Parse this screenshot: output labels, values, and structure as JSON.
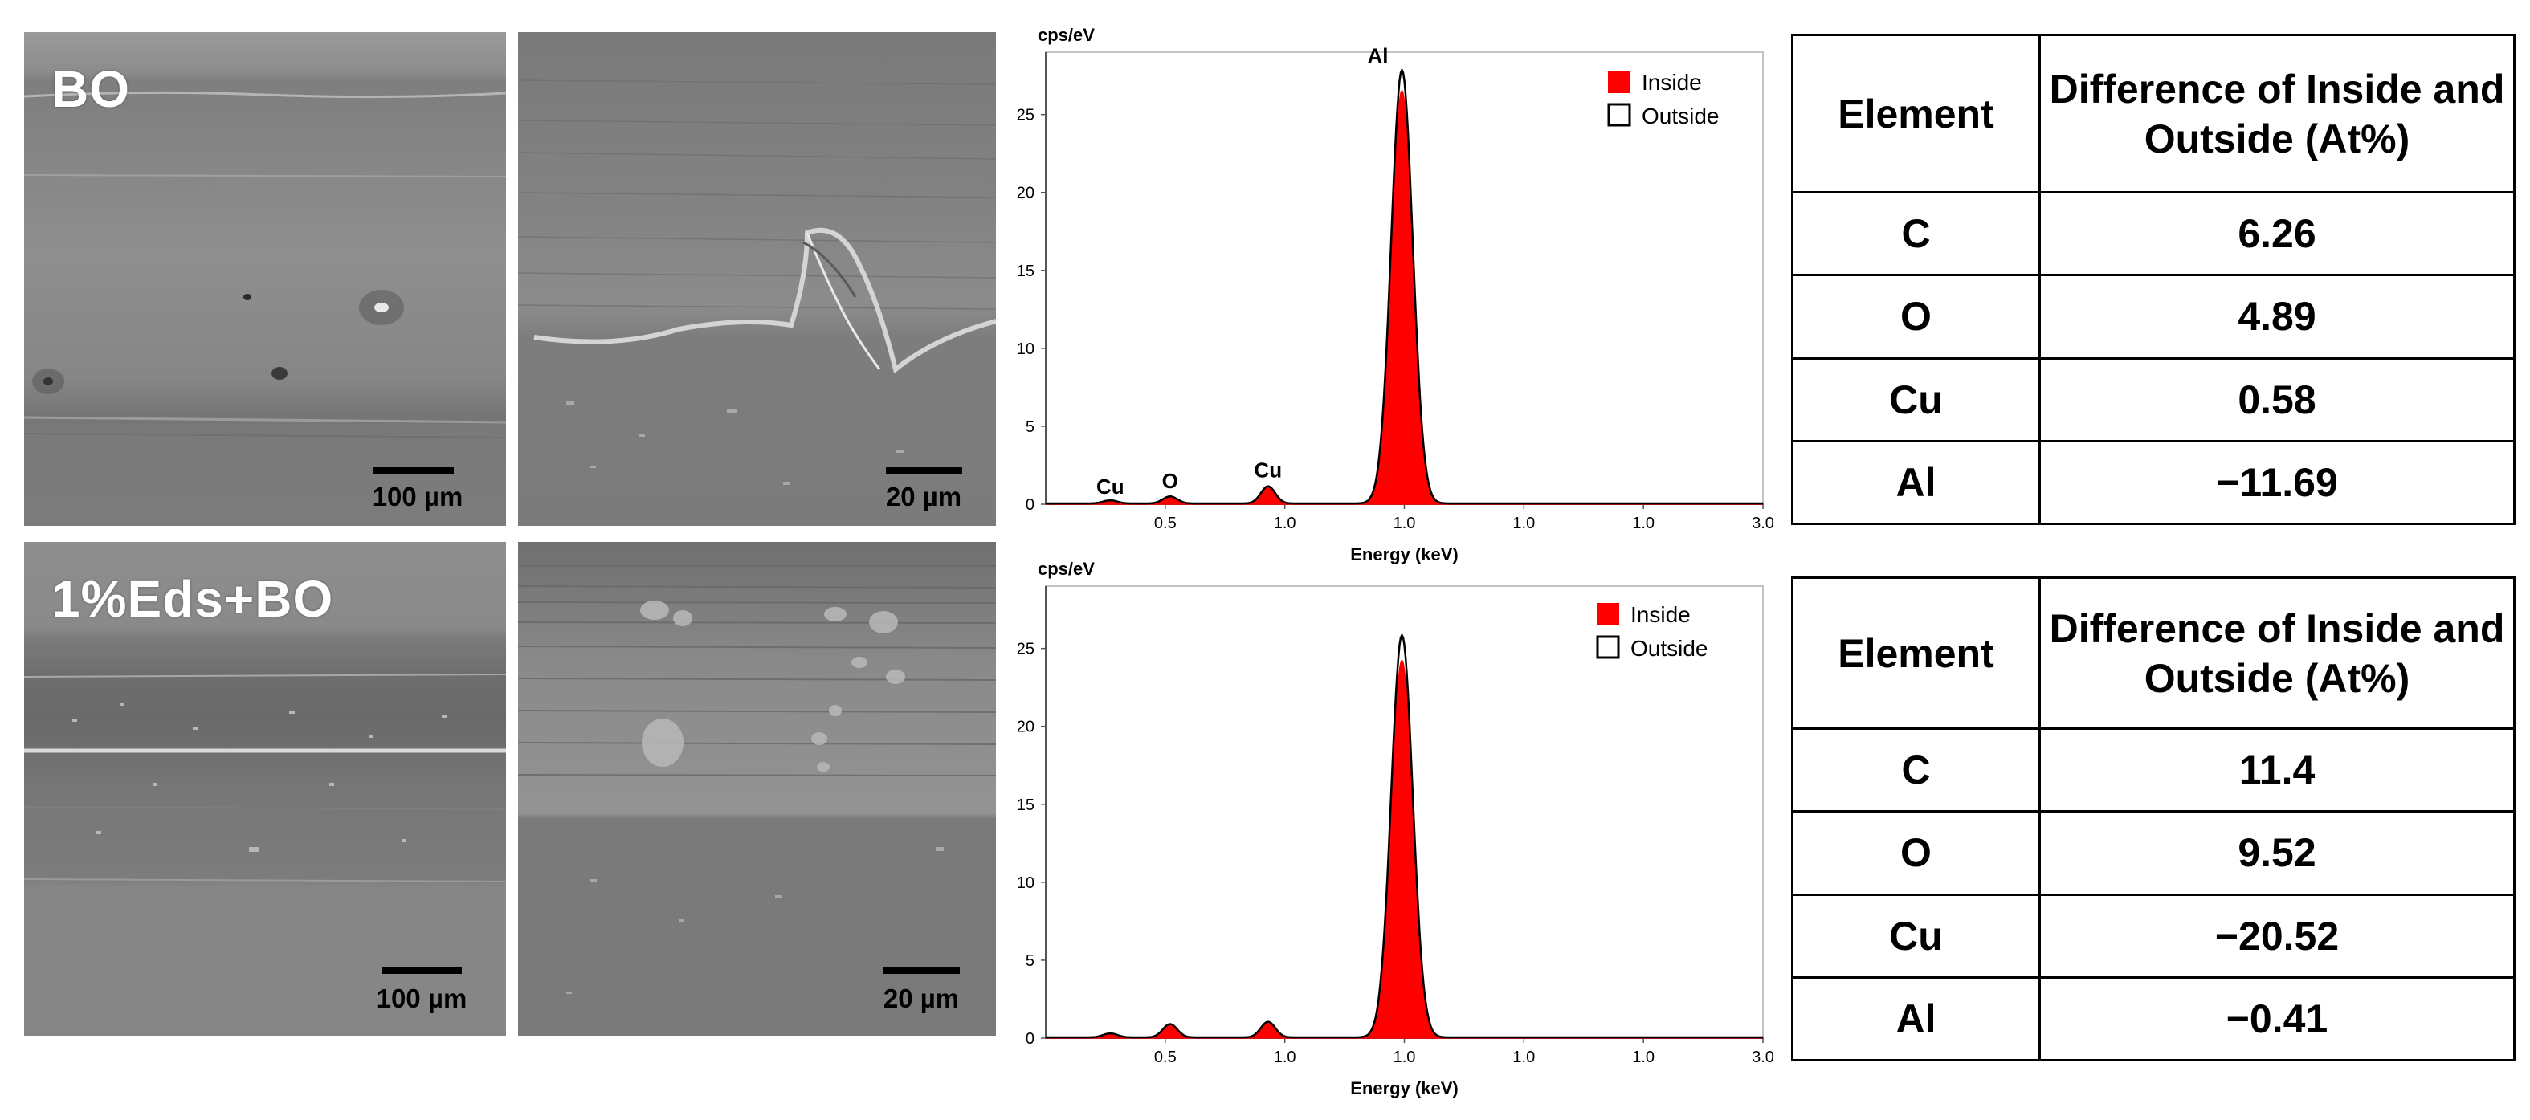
{
  "sem_rows": [
    {
      "label": "BO",
      "low_mag_scale": "100 µm",
      "high_mag_scale": "20 µm"
    },
    {
      "label": "1%Eds+BO",
      "low_mag_scale": "100 µm",
      "high_mag_scale": "20 µm"
    }
  ],
  "chart_data": [
    {
      "type": "area",
      "ylabel": "cps/eV",
      "xlabel": "Energy (keV)",
      "x_tick_labels": [
        "0.5",
        "1.0",
        "1.0",
        "1.0",
        "1.0",
        "3.0"
      ],
      "y_ticks": [
        0,
        5,
        10,
        15,
        20,
        25
      ],
      "ylim": [
        0,
        29
      ],
      "legend": [
        "Inside",
        "Outside"
      ],
      "legend_position": "top-right",
      "peak_labels": [
        "Cu",
        "O",
        "Cu",
        "Al"
      ],
      "series": [
        {
          "name": "Inside",
          "color": "#ff0000",
          "peaks": [
            {
              "x": 0.27,
              "y": 0.15
            },
            {
              "x": 0.52,
              "y": 0.4
            },
            {
              "x": 0.93,
              "y": 1.0
            },
            {
              "x": 1.49,
              "y": 26.5
            }
          ]
        },
        {
          "name": "Outside",
          "color": "#000000",
          "peaks": [
            {
              "x": 0.27,
              "y": 0.2
            },
            {
              "x": 0.52,
              "y": 0.45
            },
            {
              "x": 0.93,
              "y": 1.1
            },
            {
              "x": 1.49,
              "y": 27.8
            }
          ]
        }
      ]
    },
    {
      "type": "area",
      "ylabel": "cps/eV",
      "xlabel": "Energy (keV)",
      "x_tick_labels": [
        "0.5",
        "1.0",
        "1.0",
        "1.0",
        "1.0",
        "3.0"
      ],
      "y_ticks": [
        0,
        5,
        10,
        15,
        20,
        25
      ],
      "ylim": [
        0,
        29
      ],
      "legend": [
        "Inside",
        "Outside"
      ],
      "legend_position": "top-right",
      "peak_labels": [],
      "series": [
        {
          "name": "Inside",
          "color": "#ff0000",
          "peaks": [
            {
              "x": 0.27,
              "y": 0.2
            },
            {
              "x": 0.52,
              "y": 0.8
            },
            {
              "x": 0.93,
              "y": 0.9
            },
            {
              "x": 1.49,
              "y": 24.2
            }
          ]
        },
        {
          "name": "Outside",
          "color": "#000000",
          "peaks": [
            {
              "x": 0.27,
              "y": 0.25
            },
            {
              "x": 0.52,
              "y": 0.85
            },
            {
              "x": 0.93,
              "y": 1.0
            },
            {
              "x": 1.49,
              "y": 25.8
            }
          ]
        }
      ]
    }
  ],
  "tables": [
    {
      "header": [
        "Element",
        "Difference of Inside and Outside (At%)"
      ],
      "rows": [
        [
          "C",
          "6.26"
        ],
        [
          "O",
          "4.89"
        ],
        [
          "Cu",
          "0.58"
        ],
        [
          "Al",
          "−11.69"
        ]
      ]
    },
    {
      "header": [
        "Element",
        "Difference of Inside and Outside (At%)"
      ],
      "rows": [
        [
          "C",
          "11.4"
        ],
        [
          "O",
          "9.52"
        ],
        [
          "Cu",
          "−20.52"
        ],
        [
          "Al",
          "−0.41"
        ]
      ]
    }
  ]
}
